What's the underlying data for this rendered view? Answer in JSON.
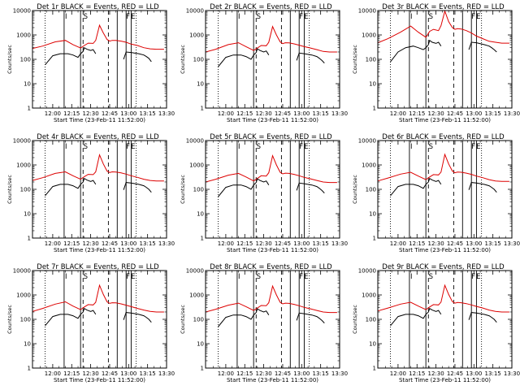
{
  "colors": {
    "events": "#000000",
    "lld": "#dd0000",
    "axes": "#000000",
    "background": "#ffffff"
  },
  "x_tick_labels": [
    "12:00",
    "12:15",
    "12:30",
    "12:45",
    "13:00",
    "13:15",
    "13:30"
  ],
  "y_tick_labels": [
    "1",
    "10",
    "100",
    "1000",
    "10000"
  ],
  "marker_labels": [
    "I",
    "S",
    "F",
    "E"
  ],
  "xlabel": "Start Time (23-Feb-11 11:52:00)",
  "ylabel": "Counts/sec",
  "chart_data": [
    {
      "type": "line",
      "title": "Det 1r BLACK = Events, RED = LLD",
      "xlabel": "Start Time (23-Feb-11 11:52:00)",
      "ylabel": "Counts/sec",
      "yscale": "log",
      "xlim_minutes": [
        -8,
        98
      ],
      "x_tick_minutes": [
        8,
        23,
        38,
        53,
        68,
        83,
        98
      ],
      "ylim": [
        1,
        10000
      ],
      "lld_x": [
        -8,
        0,
        10,
        18,
        24,
        30,
        33,
        36,
        40,
        42,
        45,
        48,
        51,
        53,
        55,
        58,
        62,
        66,
        70,
        75,
        80,
        85,
        90,
        96
      ],
      "lld_y": [
        280,
        350,
        520,
        600,
        400,
        290,
        370,
        460,
        450,
        600,
        2500,
        1200,
        650,
        560,
        600,
        600,
        560,
        500,
        420,
        370,
        300,
        270,
        260,
        260
      ],
      "events_x": [
        2,
        8,
        14,
        20,
        24,
        28,
        30,
        32,
        33,
        35,
        38,
        40,
        42,
        64,
        66,
        70,
        76,
        80,
        82,
        84,
        86
      ],
      "events_y": [
        60,
        140,
        170,
        170,
        150,
        120,
        170,
        210,
        300,
        260,
        230,
        250,
        170,
        100,
        200,
        190,
        170,
        150,
        130,
        110,
        80
      ],
      "dotted_lines": [
        2,
        74
      ],
      "solid_lines": [
        17,
        30,
        59,
        66,
        70
      ],
      "dashed_lines": [
        32,
        52
      ]
    },
    {
      "type": "line",
      "title": "Det 2r BLACK = Events, RED = LLD",
      "xlabel": "Start Time (23-Feb-11 11:52:00)",
      "ylabel": "Counts/sec",
      "yscale": "log",
      "xlim_minutes": [
        -8,
        98
      ],
      "x_tick_minutes": [
        8,
        23,
        38,
        53,
        68,
        83,
        98
      ],
      "ylim": [
        1,
        10000
      ],
      "lld_x": [
        -8,
        0,
        10,
        18,
        24,
        30,
        33,
        36,
        40,
        42,
        45,
        48,
        51,
        53,
        55,
        58,
        62,
        66,
        70,
        75,
        80,
        85,
        90,
        96
      ],
      "lld_y": [
        200,
        260,
        400,
        480,
        330,
        230,
        290,
        370,
        360,
        500,
        2200,
        1000,
        520,
        440,
        480,
        470,
        430,
        380,
        330,
        290,
        250,
        210,
        200,
        200
      ],
      "events_x": [
        2,
        8,
        14,
        20,
        24,
        28,
        30,
        32,
        33,
        35,
        38,
        40,
        42,
        64,
        66,
        70,
        76,
        80,
        82,
        84,
        86
      ],
      "events_y": [
        50,
        120,
        150,
        150,
        130,
        100,
        150,
        190,
        270,
        230,
        200,
        220,
        150,
        90,
        180,
        170,
        150,
        130,
        110,
        90,
        70
      ],
      "dotted_lines": [
        2,
        74
      ],
      "solid_lines": [
        17,
        30,
        59,
        66,
        70
      ],
      "dashed_lines": [
        32,
        52
      ]
    },
    {
      "type": "line",
      "title": "Det 3r BLACK = Events, RED = LLD",
      "xlabel": "Start Time (23-Feb-11 11:52:00)",
      "ylabel": "Counts/sec",
      "yscale": "log",
      "xlim_minutes": [
        -8,
        98
      ],
      "x_tick_minutes": [
        8,
        23,
        38,
        53,
        68,
        83,
        98
      ],
      "ylim": [
        1,
        10000
      ],
      "lld_x": [
        -8,
        0,
        10,
        18,
        24,
        30,
        33,
        36,
        40,
        42,
        45,
        48,
        51,
        53,
        55,
        58,
        62,
        66,
        70,
        75,
        80,
        85,
        90,
        96
      ],
      "lld_y": [
        480,
        700,
        1300,
        2300,
        1300,
        800,
        1400,
        1700,
        1500,
        2400,
        9500,
        3500,
        2000,
        1700,
        1800,
        1750,
        1500,
        1200,
        900,
        700,
        550,
        500,
        460,
        460
      ],
      "events_x": [
        2,
        8,
        14,
        20,
        24,
        28,
        30,
        32,
        33,
        35,
        38,
        40,
        42,
        64,
        66,
        70,
        76,
        80,
        82,
        84,
        86
      ],
      "events_y": [
        80,
        200,
        300,
        350,
        300,
        250,
        300,
        400,
        600,
        500,
        450,
        500,
        350,
        250,
        500,
        480,
        400,
        350,
        300,
        250,
        200
      ],
      "dotted_lines": [
        2,
        74
      ],
      "solid_lines": [
        17,
        30,
        59,
        66,
        70
      ],
      "dashed_lines": [
        32,
        52
      ]
    },
    {
      "type": "line",
      "title": "Det 4r BLACK = Events, RED = LLD",
      "xlabel": "Start Time (23-Feb-11 11:52:00)",
      "ylabel": "Counts/sec",
      "yscale": "log",
      "xlim_minutes": [
        -8,
        98
      ],
      "x_tick_minutes": [
        8,
        23,
        38,
        53,
        68,
        83,
        98
      ],
      "ylim": [
        1,
        10000
      ],
      "lld_x": [
        -8,
        0,
        10,
        18,
        24,
        30,
        33,
        36,
        40,
        42,
        45,
        48,
        51,
        53,
        55,
        58,
        62,
        66,
        70,
        75,
        80,
        85,
        90,
        96
      ],
      "lld_y": [
        230,
        300,
        450,
        520,
        360,
        260,
        330,
        410,
        400,
        520,
        2600,
        1100,
        560,
        490,
        520,
        510,
        470,
        420,
        360,
        310,
        260,
        230,
        220,
        220
      ],
      "events_x": [
        2,
        8,
        14,
        20,
        24,
        28,
        30,
        32,
        33,
        35,
        38,
        40,
        42,
        64,
        66,
        70,
        76,
        80,
        82,
        84,
        86
      ],
      "events_y": [
        55,
        130,
        160,
        160,
        140,
        110,
        160,
        200,
        280,
        240,
        210,
        230,
        160,
        95,
        190,
        180,
        160,
        140,
        120,
        100,
        75
      ],
      "dotted_lines": [
        2,
        74
      ],
      "solid_lines": [
        17,
        30,
        59,
        66,
        70
      ],
      "dashed_lines": [
        32,
        52
      ]
    },
    {
      "type": "line",
      "title": "Det 5r BLACK = Events, RED = LLD",
      "xlabel": "Start Time (23-Feb-11 11:52:00)",
      "ylabel": "Counts/sec",
      "yscale": "log",
      "xlim_minutes": [
        -8,
        98
      ],
      "x_tick_minutes": [
        8,
        23,
        38,
        53,
        68,
        83,
        98
      ],
      "ylim": [
        1,
        10000
      ],
      "lld_x": [
        -8,
        0,
        10,
        18,
        24,
        30,
        33,
        36,
        40,
        42,
        45,
        48,
        51,
        53,
        55,
        58,
        62,
        66,
        70,
        75,
        80,
        85,
        90,
        96
      ],
      "lld_y": [
        200,
        260,
        380,
        450,
        320,
        220,
        280,
        360,
        350,
        480,
        2400,
        1000,
        500,
        430,
        460,
        450,
        410,
        360,
        310,
        270,
        230,
        200,
        190,
        190
      ],
      "events_x": [
        2,
        8,
        14,
        20,
        24,
        28,
        30,
        32,
        33,
        35,
        38,
        40,
        42,
        64,
        66,
        70,
        76,
        80,
        82,
        84,
        86
      ],
      "events_y": [
        50,
        120,
        150,
        150,
        130,
        100,
        150,
        190,
        270,
        230,
        200,
        220,
        150,
        90,
        180,
        170,
        150,
        130,
        110,
        90,
        70
      ],
      "dotted_lines": [
        2,
        74
      ],
      "solid_lines": [
        17,
        30,
        59,
        66,
        70
      ],
      "dashed_lines": [
        32,
        52
      ]
    },
    {
      "type": "line",
      "title": "Det 6r BLACK = Events, RED = LLD",
      "xlabel": "Start Time (23-Feb-11 11:52:00)",
      "ylabel": "Counts/sec",
      "yscale": "log",
      "xlim_minutes": [
        -8,
        98
      ],
      "x_tick_minutes": [
        8,
        23,
        38,
        53,
        68,
        83,
        98
      ],
      "ylim": [
        1,
        10000
      ],
      "lld_x": [
        -8,
        0,
        10,
        18,
        24,
        30,
        33,
        36,
        40,
        42,
        45,
        48,
        51,
        53,
        55,
        58,
        62,
        66,
        70,
        75,
        80,
        85,
        90,
        96
      ],
      "lld_y": [
        220,
        290,
        420,
        500,
        350,
        250,
        320,
        400,
        390,
        510,
        2700,
        1100,
        560,
        480,
        510,
        500,
        460,
        410,
        350,
        300,
        250,
        220,
        210,
        210
      ],
      "events_x": [
        2,
        8,
        14,
        20,
        24,
        28,
        30,
        32,
        33,
        35,
        38,
        40,
        42,
        64,
        66,
        70,
        76,
        80,
        82,
        84,
        86
      ],
      "events_y": [
        55,
        130,
        160,
        160,
        140,
        110,
        160,
        200,
        280,
        240,
        210,
        230,
        160,
        95,
        190,
        180,
        160,
        140,
        120,
        100,
        75
      ],
      "dotted_lines": [
        2,
        74
      ],
      "solid_lines": [
        17,
        30,
        59,
        66,
        70
      ],
      "dashed_lines": [
        32,
        52
      ]
    },
    {
      "type": "line",
      "title": "Det 7r BLACK = Events, RED = LLD",
      "xlabel": "Start Time (23-Feb-11 11:52:00)",
      "ylabel": "Counts/sec",
      "yscale": "log",
      "xlim_minutes": [
        -8,
        98
      ],
      "x_tick_minutes": [
        8,
        23,
        38,
        53,
        68,
        83,
        98
      ],
      "ylim": [
        1,
        10000
      ],
      "lld_x": [
        -8,
        0,
        10,
        18,
        24,
        30,
        33,
        36,
        40,
        42,
        45,
        48,
        51,
        53,
        55,
        58,
        62,
        66,
        70,
        75,
        80,
        85,
        90,
        96
      ],
      "lld_y": [
        210,
        280,
        420,
        520,
        350,
        250,
        320,
        400,
        390,
        500,
        2500,
        1050,
        520,
        450,
        480,
        470,
        430,
        380,
        330,
        280,
        240,
        210,
        200,
        200
      ],
      "events_x": [
        2,
        8,
        14,
        20,
        24,
        28,
        30,
        32,
        33,
        35,
        38,
        40,
        42,
        64,
        66,
        70,
        76,
        80,
        82,
        84,
        86
      ],
      "events_y": [
        55,
        130,
        160,
        160,
        140,
        110,
        160,
        200,
        280,
        240,
        210,
        230,
        160,
        95,
        190,
        180,
        160,
        140,
        120,
        100,
        75
      ],
      "dotted_lines": [
        2,
        74
      ],
      "solid_lines": [
        17,
        30,
        59,
        66,
        70
      ],
      "dashed_lines": [
        32,
        52
      ]
    },
    {
      "type": "line",
      "title": "Det 8r BLACK = Events, RED = LLD",
      "xlabel": "Start Time (23-Feb-11 11:52:00)",
      "ylabel": "Counts/sec",
      "yscale": "log",
      "xlim_minutes": [
        -8,
        98
      ],
      "x_tick_minutes": [
        8,
        23,
        38,
        53,
        68,
        83,
        98
      ],
      "ylim": [
        1,
        10000
      ],
      "lld_x": [
        -8,
        0,
        10,
        18,
        24,
        30,
        33,
        36,
        40,
        42,
        45,
        48,
        51,
        53,
        55,
        58,
        62,
        66,
        70,
        75,
        80,
        85,
        90,
        96
      ],
      "lld_y": [
        200,
        260,
        380,
        460,
        330,
        230,
        290,
        370,
        360,
        480,
        2300,
        1000,
        500,
        430,
        460,
        450,
        410,
        360,
        310,
        270,
        230,
        200,
        190,
        190
      ],
      "events_x": [
        2,
        8,
        14,
        20,
        24,
        28,
        30,
        32,
        33,
        35,
        38,
        40,
        42,
        64,
        66,
        70,
        76,
        80,
        82,
        84,
        86
      ],
      "events_y": [
        50,
        120,
        150,
        150,
        130,
        100,
        150,
        190,
        270,
        230,
        200,
        220,
        150,
        90,
        180,
        170,
        150,
        130,
        110,
        90,
        70
      ],
      "dotted_lines": [
        2,
        74
      ],
      "solid_lines": [
        17,
        30,
        59,
        66,
        70
      ],
      "dashed_lines": [
        32,
        52
      ]
    },
    {
      "type": "line",
      "title": "Det 9r BLACK = Events, RED = LLD",
      "xlabel": "Start Time (23-Feb-11 11:52:00)",
      "ylabel": "Counts/sec",
      "yscale": "log",
      "xlim_minutes": [
        -8,
        98
      ],
      "x_tick_minutes": [
        8,
        23,
        38,
        53,
        68,
        83,
        98
      ],
      "ylim": [
        1,
        10000
      ],
      "lld_x": [
        -8,
        0,
        10,
        18,
        24,
        30,
        33,
        36,
        40,
        42,
        45,
        48,
        51,
        53,
        55,
        58,
        62,
        66,
        70,
        75,
        80,
        85,
        90,
        96
      ],
      "lld_y": [
        220,
        290,
        420,
        500,
        350,
        250,
        320,
        400,
        390,
        510,
        2500,
        1050,
        530,
        460,
        490,
        480,
        440,
        390,
        340,
        290,
        240,
        210,
        200,
        200
      ],
      "events_x": [
        2,
        8,
        14,
        20,
        24,
        28,
        30,
        32,
        33,
        35,
        38,
        40,
        42,
        64,
        66,
        70,
        76,
        80,
        82,
        84,
        86
      ],
      "events_y": [
        55,
        130,
        160,
        160,
        140,
        110,
        160,
        200,
        280,
        240,
        210,
        230,
        160,
        95,
        190,
        180,
        160,
        140,
        120,
        100,
        75
      ],
      "dotted_lines": [
        2,
        74
      ],
      "solid_lines": [
        17,
        30,
        59,
        66,
        70
      ],
      "dashed_lines": [
        32,
        52
      ]
    }
  ]
}
